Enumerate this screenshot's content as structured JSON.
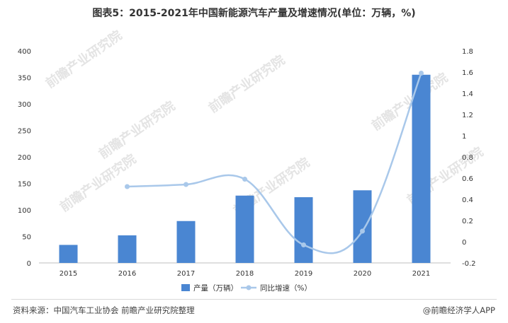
{
  "chart_data": {
    "type": "bar",
    "title": "图表5：2015-2021年中国新能源汽车产量及增速情况(单位：万辆，%)",
    "categories": [
      "2015",
      "2016",
      "2017",
      "2018",
      "2019",
      "2020",
      "2021"
    ],
    "series": [
      {
        "name": "产量（万辆）",
        "type": "bar",
        "axis": "left",
        "color": "#4a86d2",
        "values": [
          34,
          52,
          79,
          127,
          124,
          137,
          355
        ]
      },
      {
        "name": "同比增速（%）",
        "type": "line",
        "axis": "right",
        "color": "#a9c8ea",
        "values": [
          null,
          0.52,
          0.54,
          0.59,
          -0.03,
          0.1,
          1.59
        ]
      }
    ],
    "y_left": {
      "min": 0,
      "max": 400,
      "ticks": [
        "0",
        "50",
        "100",
        "150",
        "200",
        "250",
        "300",
        "350",
        "400"
      ]
    },
    "y_right": {
      "min": -0.2,
      "max": 1.8,
      "ticks": [
        "-0.2",
        "0",
        "0.2",
        "0.4",
        "0.6",
        "0.8",
        "1",
        "1.2",
        "1.4",
        "1.6",
        "1.8"
      ]
    },
    "grid": false,
    "legend_position": "bottom"
  },
  "footer": {
    "source": "资料来源：中国汽车工业协会 前瞻产业研究院整理",
    "brand": "@前瞻经济学人APP"
  },
  "watermark": "前瞻产业研究院"
}
